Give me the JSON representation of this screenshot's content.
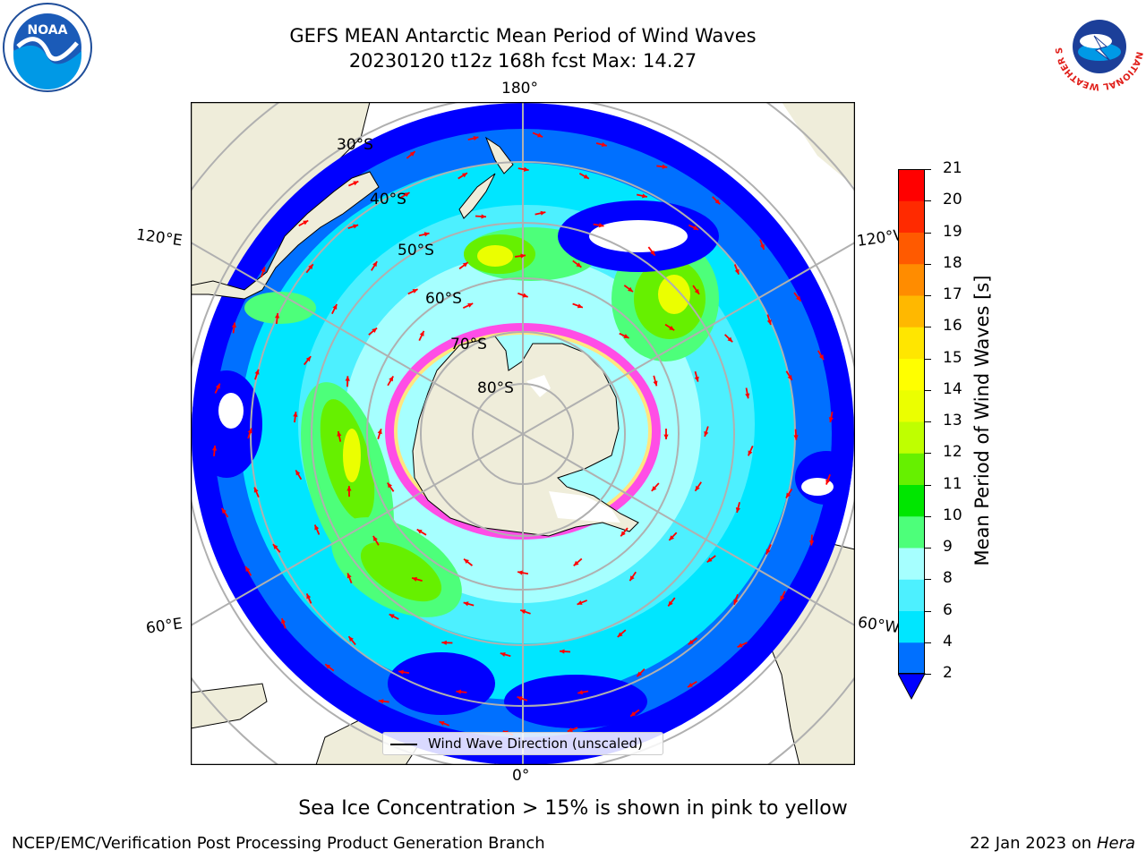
{
  "title": {
    "line1": "GEFS MEAN Antarctic Mean Period of Wind Waves",
    "line2": "20230120 t12z 168h fcst   Max: 14.27"
  },
  "map": {
    "lon_labels": {
      "top": "180°",
      "bottom": "0°",
      "left_upper": "120°E",
      "left_lower": "60°E",
      "right_upper": "120°W",
      "right_lower": "60°W"
    },
    "lat_labels": [
      "30°S",
      "40°S",
      "50°S",
      "60°S",
      "70°S",
      "80°S"
    ],
    "legend_label": "Wind Wave Direction (unscaled)",
    "colors": {
      "land": "#efedda",
      "arrow": "#ff0000",
      "graticule": "#b0b0b0"
    }
  },
  "colorbar": {
    "label": "Mean Period of Wind Waves [s]",
    "ticks": [
      "2",
      "4",
      "6",
      "8",
      "9",
      "10",
      "11",
      "12",
      "13",
      "14",
      "15",
      "16",
      "17",
      "18",
      "19",
      "20",
      "21"
    ],
    "colors": [
      "#0070ff",
      "#00e6ff",
      "#4df0ff",
      "#a6ffff",
      "#4dff7a",
      "#00e600",
      "#66f000",
      "#bfff00",
      "#ebff00",
      "#ffff00",
      "#ffe600",
      "#ffb800",
      "#ff8c00",
      "#ff5a00",
      "#ff2a00",
      "#ff0000"
    ],
    "under_color": "#0000ff"
  },
  "annotation": "Sea Ice Concentration > 15% is shown in pink to yellow",
  "footer": {
    "left": "NCEP/EMC/Verification Post Processing Product Generation Branch",
    "right_prefix": "22 Jan 2023 on ",
    "right_machine": "Hera"
  },
  "logos": {
    "noaa": "NOAA",
    "nws": "NATIONAL WEATHER SERVICE"
  }
}
